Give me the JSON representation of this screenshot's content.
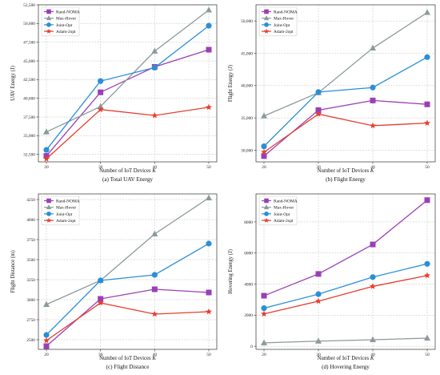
{
  "colors": {
    "Rand-NOMA": "#9b3fb5",
    "Max-Hover": "#8c9a9c",
    "Joint-Opt": "#2b8fd6",
    "Adam-2opt": "#e53e2f"
  },
  "markers": {
    "Rand-NOMA": "square",
    "Max-Hover": "triangle",
    "Joint-Opt": "circle",
    "Adam-2opt": "star"
  },
  "chart_data": [
    {
      "type": "line",
      "caption": "(a) Total UAV Energy",
      "xlabel": "Number of IoT Devices K",
      "ylabel": "UAV Energy (J)",
      "x": [
        20,
        30,
        40,
        50
      ],
      "xticks": [
        "20",
        "30",
        "40",
        "50"
      ],
      "ylim": [
        31500,
        52500
      ],
      "yticks": [
        32500,
        35000,
        37500,
        40000,
        42500,
        45000,
        47500,
        50000,
        52500
      ],
      "ytick_labels": [
        "32,500",
        "35,000",
        "37,500",
        "40,000",
        "42,500",
        "45,000",
        "47,500",
        "50,000",
        "52,500"
      ],
      "grid": true,
      "legend": "top-left",
      "series": [
        {
          "name": "Rand-NOMA",
          "values": [
            32300,
            40800,
            44200,
            46500
          ]
        },
        {
          "name": "Max-Hover",
          "values": [
            35500,
            38900,
            46300,
            51800
          ]
        },
        {
          "name": "Joint-Opt",
          "values": [
            33100,
            42300,
            44100,
            49700
          ]
        },
        {
          "name": "Adam-2opt",
          "values": [
            31900,
            38500,
            37700,
            38800
          ]
        }
      ]
    },
    {
      "type": "line",
      "caption": "(b) Flight Energy",
      "xlabel": "Number of IoT Devices K",
      "ylabel": "Flight Energy (J)",
      "x": [
        20,
        30,
        40,
        50
      ],
      "xticks": [
        "20",
        "30",
        "40",
        "50"
      ],
      "ylim": [
        28200,
        52500
      ],
      "yticks": [
        30000,
        35000,
        40000,
        45000,
        50000
      ],
      "ytick_labels": [
        "30,000",
        "35,000",
        "40,000",
        "45,000",
        "50,000"
      ],
      "grid": true,
      "legend": "top-left",
      "series": [
        {
          "name": "Rand-NOMA",
          "values": [
            29100,
            36200,
            37700,
            37100
          ]
        },
        {
          "name": "Max-Hover",
          "values": [
            35300,
            38900,
            45800,
            51300
          ]
        },
        {
          "name": "Joint-Opt",
          "values": [
            30600,
            39000,
            39700,
            44400
          ]
        },
        {
          "name": "Adam-2opt",
          "values": [
            29700,
            35600,
            33800,
            34200
          ]
        }
      ]
    },
    {
      "type": "line",
      "caption": "(c) Flight Distance",
      "xlabel": "Number of IoT Devices K",
      "ylabel": "Flight Distance (m)",
      "x": [
        20,
        30,
        40,
        50
      ],
      "xticks": [
        "20",
        "30",
        "40",
        "50"
      ],
      "ylim": [
        2380,
        4320
      ],
      "yticks": [
        2500,
        2750,
        3000,
        3250,
        3500,
        3750,
        4000,
        4250
      ],
      "ytick_labels": [
        "2500",
        "2750",
        "3000",
        "3250",
        "3500",
        "3750",
        "4000",
        "4250"
      ],
      "grid": true,
      "legend": "top-left",
      "series": [
        {
          "name": "Rand-NOMA",
          "values": [
            2420,
            3010,
            3130,
            3090
          ]
        },
        {
          "name": "Max-Hover",
          "values": [
            2940,
            3240,
            3820,
            4270
          ]
        },
        {
          "name": "Joint-Opt",
          "values": [
            2560,
            3240,
            3310,
            3700
          ]
        },
        {
          "name": "Adam-2opt",
          "values": [
            2490,
            2960,
            2820,
            2850
          ]
        }
      ]
    },
    {
      "type": "line",
      "caption": "(d) Hovering Energy",
      "xlabel": "Number of IoT Devices K",
      "ylabel": "Hovering Energy (J)",
      "x": [
        20,
        30,
        40,
        50
      ],
      "xticks": [
        "20",
        "30",
        "40",
        "50"
      ],
      "ylim": [
        -200,
        9800
      ],
      "yticks": [
        0,
        2000,
        4000,
        6000,
        8000
      ],
      "ytick_labels": [
        "0",
        "2000",
        "4000",
        "6000",
        "8000"
      ],
      "grid": true,
      "legend": "top-left",
      "series": [
        {
          "name": "Rand-NOMA",
          "values": [
            3250,
            4650,
            6550,
            9400
          ]
        },
        {
          "name": "Max-Hover",
          "values": [
            220,
            330,
            420,
            520
          ]
        },
        {
          "name": "Joint-Opt",
          "values": [
            2450,
            3350,
            4450,
            5300
          ]
        },
        {
          "name": "Adam-2opt",
          "values": [
            2080,
            2900,
            3850,
            4550
          ]
        }
      ]
    }
  ]
}
